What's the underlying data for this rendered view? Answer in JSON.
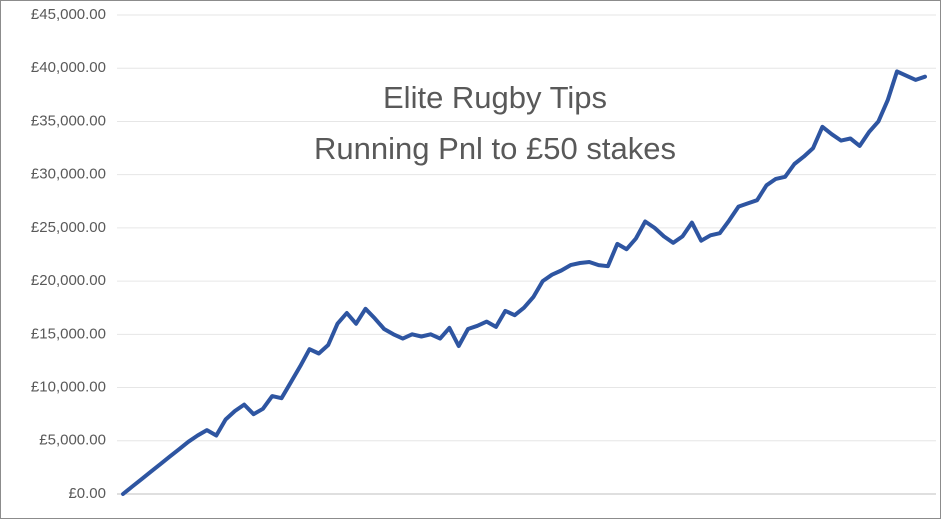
{
  "chart_data": {
    "type": "line",
    "title": "Elite Rugby Tips",
    "subtitle": "Running Pnl to £50 stakes",
    "series": [
      {
        "color": "#2e55a1",
        "values": [
          0,
          700,
          1400,
          2100,
          2800,
          3500,
          4200,
          4900,
          5500,
          6000,
          5500,
          7000,
          7800,
          8400,
          7500,
          8000,
          9200,
          9000,
          10500,
          12000,
          13600,
          13200,
          14000,
          16000,
          17000,
          16000,
          17400,
          16500,
          15500,
          15000,
          14600,
          15000,
          14800,
          15000,
          14600,
          15600,
          13900,
          15500,
          15800,
          16200,
          15700,
          17200,
          16800,
          17500,
          18500,
          20000,
          20600,
          21000,
          21500,
          21700,
          21800,
          21500,
          21400,
          23500,
          23000,
          24000,
          25600,
          25000,
          24200,
          23600,
          24200,
          25500,
          23800,
          24300,
          24500,
          25700,
          27000,
          27300,
          27600,
          29000,
          29600,
          29800,
          31000,
          31700,
          32500,
          34500,
          33800,
          33200,
          33400,
          32700,
          34000,
          35000,
          37000,
          39700,
          39300,
          38900,
          39200
        ]
      }
    ],
    "ylim": [
      0,
      45000
    ],
    "yticks": [
      {
        "value": 0,
        "label": "£0.00"
      },
      {
        "value": 5000,
        "label": "£5,000.00"
      },
      {
        "value": 10000,
        "label": "£10,000.00"
      },
      {
        "value": 15000,
        "label": "£15,000.00"
      },
      {
        "value": 20000,
        "label": "£20,000.00"
      },
      {
        "value": 25000,
        "label": "£25,000.00"
      },
      {
        "value": 30000,
        "label": "£30,000.00"
      },
      {
        "value": 35000,
        "label": "£35,000.00"
      },
      {
        "value": 40000,
        "label": "£40,000.00"
      },
      {
        "value": 45000,
        "label": "£45,000.00"
      }
    ],
    "grid": true
  }
}
